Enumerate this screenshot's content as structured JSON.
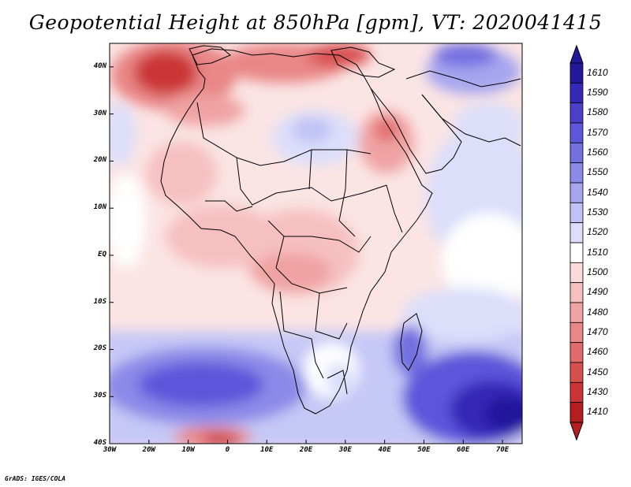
{
  "title": "Geopotential Height at 850hPa [gpm], VT: 2020041415",
  "footer": "GrADS: IGES/COLA",
  "map": {
    "variable": "Geopotential Height at 850hPa",
    "units": "gpm",
    "valid_time": "2020041415",
    "lat_ticks": [
      "40N",
      "30N",
      "20N",
      "10N",
      "EQ",
      "10S",
      "20S",
      "30S",
      "40S"
    ],
    "lon_ticks": [
      "30W",
      "20W",
      "10W",
      "0",
      "10E",
      "20E",
      "30E",
      "40E",
      "50E",
      "60E",
      "70E"
    ],
    "extent": {
      "lon_min": -30,
      "lon_max": 75,
      "lat_min": -40,
      "lat_max": 45
    }
  },
  "colorbar": {
    "labels": [
      "1610",
      "1590",
      "1580",
      "1570",
      "1560",
      "1550",
      "1540",
      "1530",
      "1520",
      "1510",
      "1500",
      "1490",
      "1480",
      "1470",
      "1460",
      "1450",
      "1430",
      "1410"
    ],
    "colors": [
      "#23189a",
      "#3528b8",
      "#4b40cc",
      "#5d57da",
      "#7370e0",
      "#8c8ae8",
      "#a6a6ef",
      "#c0c2f5",
      "#dcdefa",
      "#ffffff",
      "#fbdada",
      "#f6c0c0",
      "#f0a3a3",
      "#e98686",
      "#e16a6a",
      "#d84f4f",
      "#cb3434",
      "#b41e1e"
    ]
  },
  "colors": {
    "low": "#b41e1e",
    "high": "#23189a",
    "neutral": "#ffffff"
  }
}
